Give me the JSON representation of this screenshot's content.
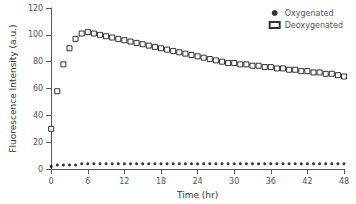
{
  "chart_data": {
    "type": "scatter",
    "xlabel": "Time (hr)",
    "ylabel": "Fluorescence Intensity (a.u.)",
    "xlim": [
      0,
      48
    ],
    "ylim": [
      0,
      120
    ],
    "xticks": [
      0,
      6,
      12,
      18,
      24,
      30,
      36,
      42,
      48
    ],
    "yticks": [
      0,
      20,
      40,
      60,
      80,
      100,
      120
    ],
    "grid": false,
    "legend": "upper right",
    "series": [
      {
        "name": "Oxygenated",
        "color": "#000000",
        "marker": "dot",
        "x": [
          0,
          1,
          2,
          3,
          4,
          5,
          6,
          7,
          8,
          9,
          10,
          11,
          12,
          13,
          14,
          15,
          16,
          17,
          18,
          19,
          20,
          21,
          22,
          23,
          24,
          25,
          26,
          27,
          28,
          29,
          30,
          31,
          32,
          33,
          34,
          35,
          36,
          37,
          38,
          39,
          40,
          41,
          42,
          43,
          44,
          45,
          46,
          47,
          48
        ],
        "values": [
          2,
          3,
          3,
          3,
          3,
          4,
          4,
          4,
          4,
          4,
          4,
          4,
          4,
          4,
          4,
          4,
          4,
          4,
          4,
          4,
          4,
          4,
          4,
          4,
          4,
          4,
          4,
          4,
          4,
          4,
          4,
          4,
          4,
          4,
          4,
          4,
          4,
          4,
          4,
          4,
          4,
          4,
          4,
          4,
          4,
          4,
          4,
          4,
          4
        ]
      },
      {
        "name": "Deoxygenated",
        "color": "#000000",
        "marker": "open_square",
        "x": [
          0,
          1,
          2,
          3,
          4,
          5,
          6,
          7,
          8,
          9,
          10,
          11,
          12,
          13,
          14,
          15,
          16,
          17,
          18,
          19,
          20,
          21,
          22,
          23,
          24,
          25,
          26,
          27,
          28,
          29,
          30,
          31,
          32,
          33,
          34,
          35,
          36,
          37,
          38,
          39,
          40,
          41,
          42,
          43,
          44,
          45,
          46,
          47,
          48
        ],
        "values": [
          30,
          58,
          78,
          90,
          97,
          101,
          102,
          101,
          100,
          99,
          98,
          97,
          96,
          95,
          94,
          93,
          92,
          91,
          90,
          89,
          88,
          87,
          86,
          85,
          84,
          83,
          82,
          81,
          80,
          79,
          79,
          78,
          78,
          77,
          77,
          76,
          76,
          75,
          75,
          74,
          74,
          73,
          73,
          72,
          72,
          71,
          71,
          70,
          69
        ]
      }
    ]
  }
}
